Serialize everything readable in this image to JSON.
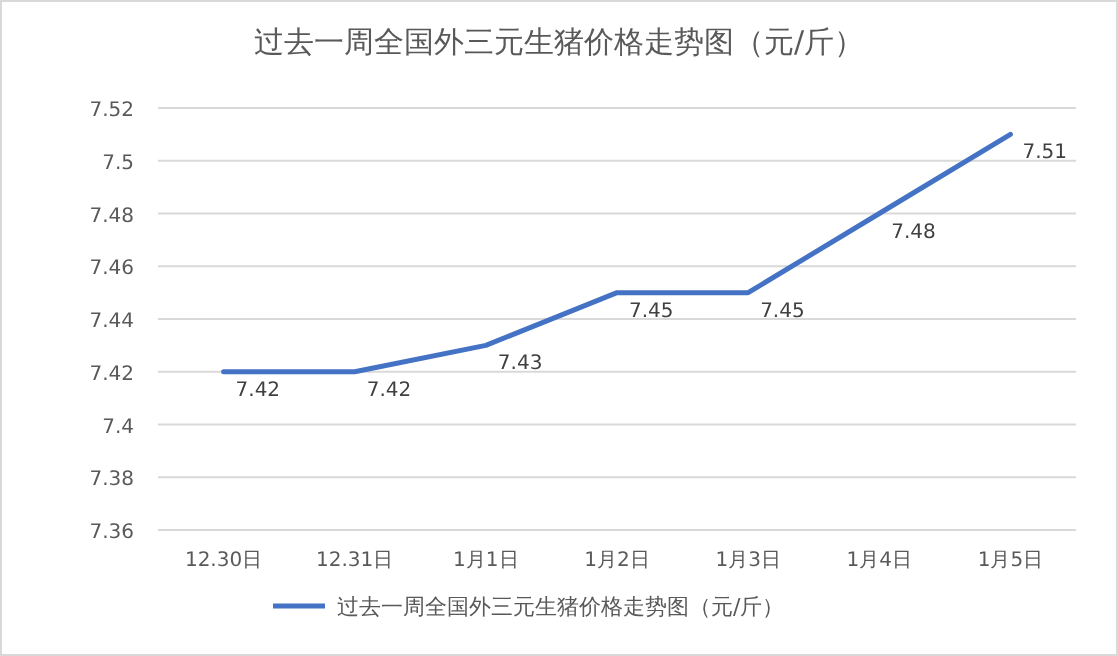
{
  "chart_data": {
    "type": "line",
    "title": "过去一周全国外三元生猪价格走势图（元/斤）",
    "categories": [
      "12.30日",
      "12.31日",
      "1月1日",
      "1月2日",
      "1月3日",
      "1月4日",
      "1月5日"
    ],
    "series": [
      {
        "name": "过去一周全国外三元生猪价格走势图（元/斤）",
        "color": "#4472c4",
        "values": [
          7.42,
          7.42,
          7.43,
          7.45,
          7.45,
          7.48,
          7.51
        ]
      }
    ],
    "ylim": [
      7.36,
      7.52
    ],
    "yticks": [
      7.36,
      7.38,
      7.4,
      7.42,
      7.44,
      7.46,
      7.48,
      7.5,
      7.52
    ],
    "grid": "y",
    "legend": "bottom",
    "data_labels": true,
    "marker": "none",
    "line_style": "solid"
  }
}
